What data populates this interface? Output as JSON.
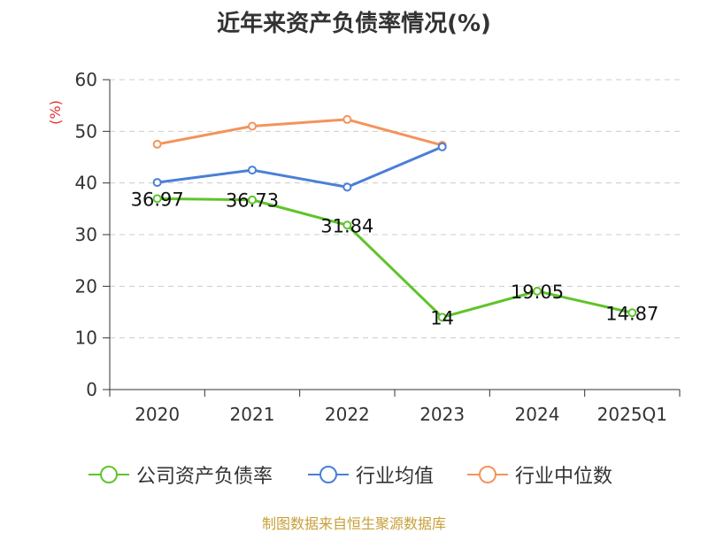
{
  "chart_data": {
    "type": "line",
    "title": "近年来资产负债率情况(%)",
    "ylabel": "(%)",
    "categories": [
      "2020",
      "2021",
      "2022",
      "2023",
      "2024",
      "2025Q1"
    ],
    "ylim": [
      0,
      60
    ],
    "yticks": [
      0,
      10,
      20,
      30,
      40,
      50,
      60
    ],
    "grid": "horizontal dashed",
    "legend_position": "bottom",
    "series": [
      {
        "name": "公司资产负债率",
        "color": "#5fc42a",
        "values": [
          36.97,
          36.73,
          31.84,
          14,
          19.05,
          14.87
        ],
        "labels": [
          "36.97",
          "36.73",
          "31.84",
          "14",
          "19.05",
          "14.87"
        ]
      },
      {
        "name": "行业均值",
        "color": "#4a7fd6",
        "values": [
          40.1,
          42.5,
          39.2,
          47.0,
          null,
          null
        ]
      },
      {
        "name": "行业中位数",
        "color": "#f4935c",
        "values": [
          47.5,
          51.0,
          52.3,
          47.3,
          null,
          null
        ]
      }
    ]
  },
  "footer": "制图数据来自恒生聚源数据库"
}
